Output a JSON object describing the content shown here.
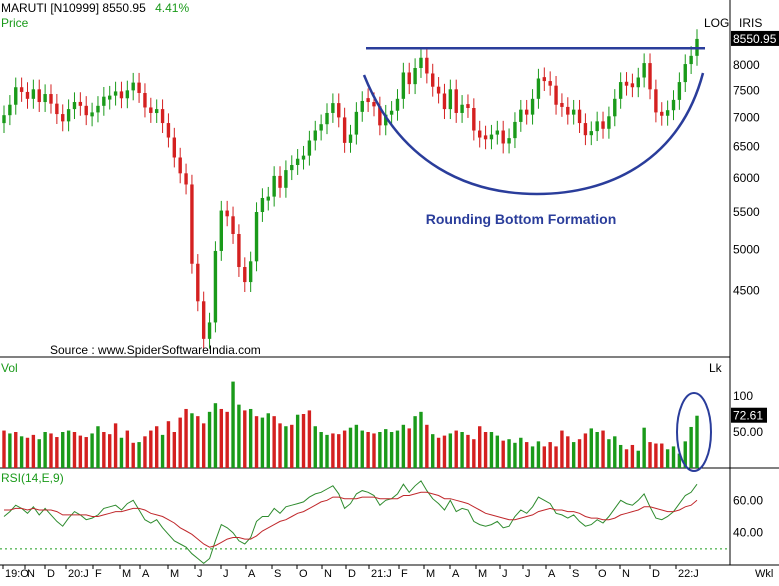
{
  "header": {
    "symbol": "MARUTI [N10999]",
    "last_price": "8550.95",
    "change_pct": "4.41%",
    "panel_label": "Price",
    "scale_label": "LOG",
    "software_label": "IRIS"
  },
  "source_note": "Source : www.SpiderSoftwareIndia.com",
  "annotation": "Rounding Bottom Formation",
  "colors": {
    "up": "#1a9a1a",
    "down": "#d42020",
    "annotation": "#2a3d9b",
    "rsi_line": "#2e8b2e",
    "rsi_avg": "#c0282c",
    "price_badge_bg": "#000000",
    "volume_badge_bg": "#000000"
  },
  "chart_data": [
    {
      "type": "candlestick",
      "title": "MARUTI [N10999]",
      "scale": "log",
      "ylim": [
        3800,
        9300
      ],
      "y_ticks": [
        "4500",
        "5000",
        "5500",
        "6000",
        "6500",
        "7000",
        "7500",
        "8000",
        "8550.95"
      ],
      "last_value": "8550.95",
      "resistance_level": 8350,
      "close": [
        7040,
        7230,
        7560,
        7470,
        7340,
        7520,
        7280,
        7430,
        7250,
        7060,
        6930,
        7150,
        7280,
        7210,
        7040,
        7090,
        7210,
        7380,
        7400,
        7480,
        7350,
        7500,
        7650,
        7450,
        7180,
        7080,
        7150,
        6900,
        6650,
        6320,
        6070,
        5900,
        4820,
        4380,
        3980,
        4150,
        4980,
        5520,
        5440,
        5200,
        4780,
        4600,
        4850,
        5500,
        5700,
        5720,
        6030,
        5850,
        6120,
        6200,
        6300,
        6350,
        6600,
        6770,
        6880,
        7080,
        7260,
        7000,
        6560,
        6700,
        7100,
        7300,
        7280,
        7200,
        6860,
        7050,
        7120,
        7340,
        7850,
        7620,
        7940,
        8150,
        7830,
        7570,
        7440,
        7150,
        7520,
        7080,
        7230,
        7170,
        6770,
        6650,
        6620,
        6700,
        6770,
        6550,
        6640,
        6920,
        7140,
        7050,
        7340,
        7730,
        7680,
        7590,
        7230,
        7190,
        7050,
        7140,
        6900,
        6690,
        6760,
        6930,
        6800,
        7020,
        7340,
        7660,
        7590,
        7560,
        7750,
        8040,
        7520,
        7090,
        7030,
        7130,
        7320,
        7660,
        8020,
        8190,
        8550.95
      ],
      "candle_color": [
        "up",
        "up",
        "up",
        "down",
        "down",
        "up",
        "down",
        "up",
        "down",
        "down",
        "down",
        "up",
        "up",
        "down",
        "down",
        "up",
        "up",
        "up",
        "up",
        "up",
        "down",
        "up",
        "up",
        "down",
        "down",
        "down",
        "up",
        "down",
        "down",
        "down",
        "down",
        "down",
        "down",
        "down",
        "down",
        "up",
        "up",
        "up",
        "down",
        "down",
        "down",
        "down",
        "up",
        "up",
        "up",
        "up",
        "up",
        "down",
        "up",
        "up",
        "up",
        "up",
        "up",
        "up",
        "up",
        "up",
        "up",
        "down",
        "down",
        "up",
        "up",
        "up",
        "down",
        "down",
        "down",
        "up",
        "up",
        "up",
        "up",
        "down",
        "up",
        "up",
        "down",
        "down",
        "down",
        "down",
        "up",
        "down",
        "up",
        "down",
        "down",
        "down",
        "down",
        "up",
        "up",
        "down",
        "up",
        "up",
        "up",
        "down",
        "up",
        "up",
        "down",
        "down",
        "down",
        "down",
        "down",
        "up",
        "down",
        "down",
        "up",
        "up",
        "down",
        "up",
        "up",
        "up",
        "down",
        "down",
        "up",
        "up",
        "down",
        "down",
        "down",
        "up",
        "up",
        "up",
        "up",
        "up",
        "up"
      ],
      "x_ticks": [
        "19:O",
        "N",
        "D",
        "20:J",
        "F",
        "M",
        "A",
        "M",
        "J",
        "J",
        "A",
        "S",
        "O",
        "N",
        "D",
        "21:J",
        "F",
        "M",
        "A",
        "M",
        "J",
        "J",
        "A",
        "S",
        "O",
        "N",
        "D",
        "22:J"
      ],
      "x_axis_label": "Wkl"
    },
    {
      "type": "bar",
      "title": "Vol",
      "unit_label": "Lk",
      "y_ticks": [
        "50.00",
        "100"
      ],
      "last_value": "72.61",
      "values": [
        52,
        48,
        50,
        44,
        42,
        46,
        40,
        50,
        48,
        43,
        50,
        52,
        50,
        45,
        43,
        48,
        58,
        50,
        47,
        62,
        42,
        52,
        35,
        36,
        44,
        52,
        58,
        46,
        65,
        50,
        70,
        82,
        76,
        72,
        62,
        78,
        90,
        82,
        78,
        120,
        88,
        80,
        82,
        72,
        70,
        76,
        72,
        62,
        58,
        60,
        74,
        75,
        80,
        58,
        50,
        46,
        48,
        47,
        52,
        56,
        60,
        52,
        50,
        48,
        50,
        54,
        50,
        52,
        60,
        55,
        72,
        78,
        60,
        47,
        42,
        45,
        48,
        52,
        50,
        46,
        40,
        58,
        50,
        50,
        45,
        38,
        40,
        35,
        42,
        36,
        30,
        37,
        30,
        36,
        30,
        52,
        44,
        36,
        40,
        48,
        55,
        50,
        52,
        40,
        44,
        32,
        26,
        32,
        24,
        56,
        36,
        34,
        34,
        26,
        30,
        20,
        37,
        57,
        72.61
      ],
      "bar_color": [
        "down",
        "up",
        "down",
        "up",
        "down",
        "down",
        "up",
        "up",
        "down",
        "down",
        "up",
        "up",
        "down",
        "down",
        "down",
        "up",
        "up",
        "down",
        "down",
        "down",
        "up",
        "down",
        "down",
        "up",
        "down",
        "down",
        "down",
        "up",
        "down",
        "down",
        "down",
        "down",
        "up",
        "down",
        "down",
        "up",
        "up",
        "down",
        "down",
        "up",
        "up",
        "down",
        "up",
        "down",
        "up",
        "up",
        "down",
        "down",
        "up",
        "down",
        "up",
        "down",
        "down",
        "up",
        "up",
        "up",
        "down",
        "down",
        "down",
        "up",
        "up",
        "up",
        "down",
        "down",
        "up",
        "up",
        "up",
        "up",
        "up",
        "down",
        "up",
        "up",
        "down",
        "up",
        "down",
        "down",
        "up",
        "down",
        "up",
        "down",
        "down",
        "down",
        "down",
        "up",
        "up",
        "down",
        "up",
        "up",
        "up",
        "down",
        "up",
        "up",
        "down",
        "down",
        "down",
        "down",
        "down",
        "up",
        "down",
        "down",
        "up",
        "up",
        "down",
        "up",
        "up",
        "up",
        "down",
        "down",
        "up",
        "up",
        "down",
        "down",
        "down",
        "up",
        "up",
        "up",
        "up",
        "up",
        "up"
      ]
    },
    {
      "type": "line",
      "title": "RSI(14,E,9)",
      "y_ticks": [
        "40.00",
        "60.00"
      ],
      "ylim": [
        20,
        80
      ],
      "reference_level": 30,
      "series": [
        {
          "values": [
            50,
            53,
            57,
            55,
            52,
            56,
            51,
            55,
            51,
            47,
            44,
            49,
            53,
            51,
            48,
            49,
            51,
            55,
            56,
            57,
            54,
            58,
            60,
            54,
            48,
            46,
            48,
            43,
            39,
            35,
            33,
            31,
            27,
            24,
            21,
            24,
            35,
            45,
            43,
            40,
            35,
            33,
            37,
            47,
            50,
            50,
            55,
            52,
            56,
            57,
            58,
            59,
            62,
            64,
            65,
            67,
            69,
            64,
            55,
            58,
            64,
            66,
            65,
            63,
            57,
            60,
            61,
            64,
            70,
            65,
            69,
            72,
            66,
            61,
            58,
            54,
            60,
            53,
            55,
            54,
            47,
            45,
            44,
            45,
            47,
            43,
            44,
            50,
            54,
            52,
            56,
            62,
            60,
            58,
            52,
            51,
            49,
            51,
            47,
            44,
            45,
            48,
            46,
            50,
            55,
            60,
            58,
            57,
            60,
            64,
            56,
            49,
            48,
            50,
            53,
            58,
            63,
            65,
            70
          ]
        },
        {
          "values": [
            54,
            54,
            55,
            55,
            54,
            55,
            54,
            54,
            54,
            53,
            51,
            51,
            51,
            51,
            51,
            50,
            50,
            51,
            52,
            53,
            53,
            54,
            55,
            55,
            54,
            52,
            51,
            50,
            48,
            46,
            43,
            41,
            39,
            36,
            33,
            31,
            32,
            34,
            36,
            37,
            37,
            36,
            36,
            38,
            41,
            43,
            45,
            47,
            48,
            50,
            52,
            53,
            55,
            57,
            59,
            60,
            62,
            62,
            61,
            61,
            61,
            62,
            62,
            62,
            61,
            61,
            61,
            61,
            63,
            63,
            64,
            65,
            65,
            64,
            63,
            61,
            61,
            60,
            59,
            58,
            56,
            54,
            52,
            51,
            50,
            49,
            48,
            48,
            49,
            50,
            51,
            53,
            54,
            55,
            54,
            54,
            53,
            53,
            52,
            50,
            49,
            49,
            48,
            48,
            49,
            51,
            52,
            53,
            54,
            56,
            56,
            55,
            54,
            53,
            53,
            54,
            56,
            57,
            60
          ]
        }
      ]
    }
  ]
}
